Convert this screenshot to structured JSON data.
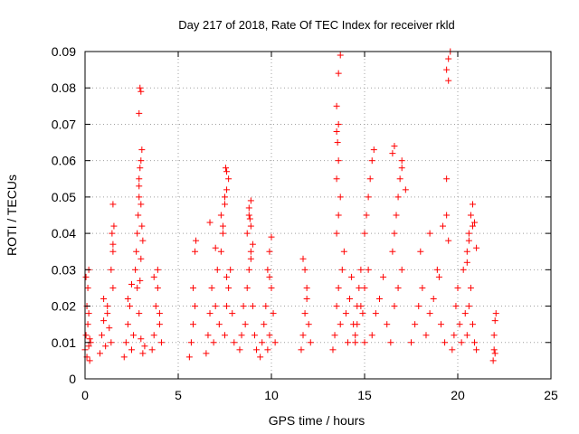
{
  "chart_data": {
    "type": "scatter",
    "title": "Day 217 of 2018, Rate Of TEC Index for receiver rkld",
    "xlabel": "GPS time / hours",
    "ylabel": "ROTI / TECUs",
    "xlim": [
      0,
      25
    ],
    "ylim": [
      0,
      0.09
    ],
    "x_ticks": [
      0,
      5,
      10,
      15,
      20,
      25
    ],
    "y_ticks": [
      0,
      0.01,
      0.02,
      0.03,
      0.04,
      0.05,
      0.06,
      0.07,
      0.08,
      0.09
    ],
    "x_tick_labels": [
      "0",
      "5",
      "10",
      "15",
      "20",
      "25"
    ],
    "y_tick_labels": [
      "0",
      "0.01",
      "0.02",
      "0.03",
      "0.04",
      "0.05",
      "0.06",
      "0.07",
      "0.08",
      "0.09"
    ],
    "grid": true,
    "marker": "+",
    "color": "#ff0000",
    "series": [
      {
        "name": "ROTI",
        "x": [
          0.0,
          0.05,
          0.1,
          0.15,
          0.2,
          0.25,
          0.1,
          0.15,
          0.2,
          0.3,
          0.05,
          0.2,
          0.25,
          0.8,
          0.9,
          1.0,
          1.1,
          1.2,
          1.3,
          1.4,
          1.5,
          1.0,
          1.2,
          1.4,
          1.5,
          1.45,
          1.5,
          1.55,
          1.5,
          2.1,
          2.2,
          2.3,
          2.4,
          2.5,
          2.6,
          2.7,
          2.8,
          2.9,
          3.0,
          3.1,
          3.2,
          2.75,
          2.8,
          2.85,
          2.9,
          2.9,
          2.95,
          3.0,
          3.05,
          2.9,
          3.0,
          2.95,
          2.9,
          3.0,
          3.05,
          3.1,
          2.95,
          3.0,
          2.3,
          2.5,
          3.6,
          3.7,
          3.8,
          3.9,
          4.0,
          4.1,
          3.7,
          3.9,
          4.0,
          5.6,
          5.7,
          5.8,
          5.9,
          5.8,
          5.9,
          5.95,
          6.5,
          6.6,
          6.7,
          6.8,
          6.9,
          7.0,
          7.1,
          7.2,
          7.3,
          7.4,
          7.5,
          7.6,
          7.7,
          7.8,
          7.9,
          8.0,
          7.3,
          7.5,
          7.6,
          7.7,
          7.4,
          7.5,
          7.55,
          7.6,
          7.6,
          6.7,
          7.0,
          8.3,
          8.4,
          8.5,
          8.6,
          8.7,
          8.8,
          8.9,
          9.0,
          9.1,
          9.2,
          8.7,
          8.8,
          8.9,
          9.0,
          8.8,
          8.9,
          8.85,
          8.9,
          9.4,
          9.5,
          9.6,
          9.7,
          9.8,
          9.9,
          10.0,
          10.1,
          10.2,
          9.8,
          9.9,
          10.0,
          9.9,
          11.6,
          11.7,
          11.8,
          11.9,
          12.0,
          12.1,
          11.8,
          11.7,
          11.9,
          13.3,
          13.4,
          13.5,
          13.6,
          13.7,
          13.8,
          13.9,
          14.0,
          14.1,
          14.2,
          14.3,
          14.4,
          14.5,
          14.6,
          14.7,
          14.8,
          14.9,
          15.0,
          13.5,
          13.6,
          13.7,
          13.5,
          13.6,
          13.55,
          13.6,
          13.5,
          13.6,
          13.7,
          13.5,
          14.5,
          14.6,
          14.8,
          15.0,
          15.2,
          15.4,
          15.6,
          15.8,
          16.0,
          16.2,
          16.4,
          16.6,
          16.8,
          17.0,
          15.0,
          15.1,
          15.2,
          15.3,
          15.4,
          15.5,
          16.5,
          16.6,
          16.7,
          16.8,
          16.9,
          17.0,
          16.5,
          16.6,
          17.0,
          17.2,
          17.5,
          17.7,
          17.9,
          18.1,
          18.3,
          18.5,
          18.7,
          18.9,
          19.1,
          19.3,
          18.0,
          18.5,
          19.0,
          19.2,
          19.4,
          19.5,
          19.4,
          19.5,
          19.6,
          19.5,
          19.4,
          19.7,
          19.8,
          19.9,
          20.0,
          20.1,
          20.2,
          20.3,
          20.4,
          20.5,
          20.6,
          20.7,
          20.8,
          20.9,
          21.0,
          20.5,
          20.6,
          20.7,
          20.8,
          20.9,
          20.6,
          20.5,
          20.8,
          21.0,
          21.9,
          21.95,
          22.0,
          22.05,
          21.95,
          22.0
        ],
        "y": [
          0.008,
          0.012,
          0.006,
          0.015,
          0.009,
          0.005,
          0.02,
          0.025,
          0.018,
          0.01,
          0.028,
          0.03,
          0.011,
          0.007,
          0.012,
          0.016,
          0.009,
          0.02,
          0.014,
          0.01,
          0.025,
          0.022,
          0.018,
          0.03,
          0.035,
          0.04,
          0.037,
          0.042,
          0.048,
          0.006,
          0.01,
          0.015,
          0.02,
          0.008,
          0.012,
          0.03,
          0.025,
          0.018,
          0.011,
          0.007,
          0.009,
          0.035,
          0.04,
          0.045,
          0.05,
          0.055,
          0.058,
          0.06,
          0.063,
          0.073,
          0.079,
          0.08,
          0.053,
          0.048,
          0.042,
          0.038,
          0.027,
          0.033,
          0.022,
          0.026,
          0.008,
          0.012,
          0.02,
          0.025,
          0.015,
          0.01,
          0.028,
          0.03,
          0.018,
          0.006,
          0.01,
          0.015,
          0.02,
          0.025,
          0.035,
          0.038,
          0.007,
          0.012,
          0.018,
          0.025,
          0.01,
          0.02,
          0.03,
          0.015,
          0.035,
          0.04,
          0.012,
          0.02,
          0.025,
          0.03,
          0.018,
          0.01,
          0.045,
          0.05,
          0.052,
          0.055,
          0.042,
          0.048,
          0.058,
          0.057,
          0.028,
          0.043,
          0.036,
          0.008,
          0.012,
          0.02,
          0.015,
          0.025,
          0.03,
          0.035,
          0.02,
          0.012,
          0.008,
          0.04,
          0.045,
          0.042,
          0.037,
          0.047,
          0.049,
          0.044,
          0.033,
          0.006,
          0.01,
          0.015,
          0.02,
          0.008,
          0.012,
          0.025,
          0.018,
          0.01,
          0.03,
          0.035,
          0.039,
          0.028,
          0.008,
          0.012,
          0.018,
          0.025,
          0.015,
          0.01,
          0.03,
          0.033,
          0.022,
          0.008,
          0.012,
          0.02,
          0.025,
          0.015,
          0.03,
          0.035,
          0.018,
          0.01,
          0.022,
          0.028,
          0.015,
          0.012,
          0.02,
          0.025,
          0.03,
          0.018,
          0.01,
          0.04,
          0.045,
          0.05,
          0.055,
          0.06,
          0.065,
          0.07,
          0.075,
          0.084,
          0.089,
          0.068,
          0.01,
          0.015,
          0.02,
          0.025,
          0.03,
          0.012,
          0.018,
          0.022,
          0.028,
          0.015,
          0.01,
          0.02,
          0.025,
          0.03,
          0.04,
          0.045,
          0.05,
          0.055,
          0.06,
          0.063,
          0.035,
          0.04,
          0.045,
          0.05,
          0.055,
          0.06,
          0.062,
          0.064,
          0.058,
          0.052,
          0.01,
          0.015,
          0.02,
          0.025,
          0.012,
          0.018,
          0.022,
          0.03,
          0.015,
          0.01,
          0.035,
          0.04,
          0.028,
          0.042,
          0.055,
          0.082,
          0.085,
          0.088,
          0.09,
          0.038,
          0.045,
          0.008,
          0.012,
          0.02,
          0.025,
          0.015,
          0.01,
          0.03,
          0.018,
          0.012,
          0.02,
          0.025,
          0.015,
          0.01,
          0.008,
          0.035,
          0.04,
          0.045,
          0.048,
          0.043,
          0.038,
          0.032,
          0.042,
          0.036,
          0.005,
          0.008,
          0.016,
          0.018,
          0.012,
          0.007
        ]
      }
    ]
  }
}
